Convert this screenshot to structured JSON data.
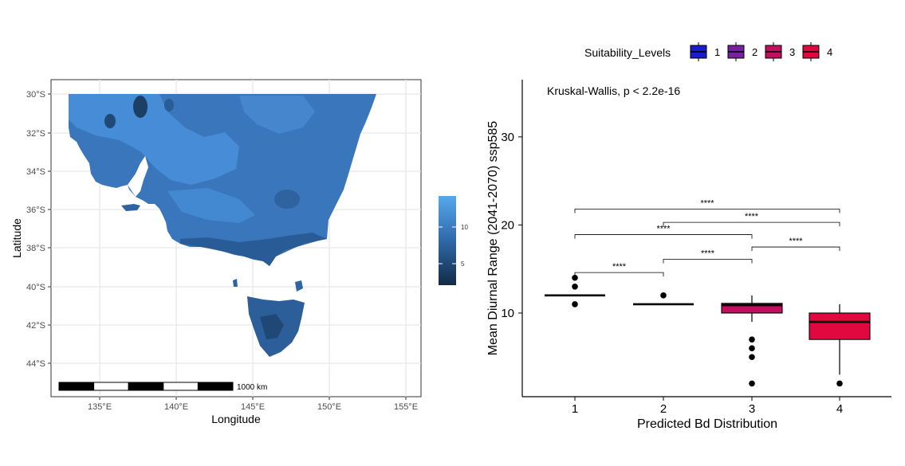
{
  "map_panel": {
    "xlabel": "Longitude",
    "ylabel": "Latitude",
    "x_ticks": [
      "135°E",
      "140°E",
      "145°E",
      "150°E",
      "155°E"
    ],
    "y_ticks": [
      "30°S",
      "32°S",
      "34°S",
      "36°S",
      "38°S",
      "40°S",
      "42°S",
      "44°S"
    ],
    "scalebar_label": "1000 km",
    "colorbar_ticks": [
      "10",
      "5"
    ],
    "colors": {
      "land_main": "#3b78bf",
      "land_light": "#4a90d9",
      "land_dark": "#1f4e80",
      "panel_border": "#333333",
      "grid": "#ebebeb"
    }
  },
  "chart_data": {
    "type": "box",
    "legend_title": "Suitability_Levels",
    "legend_position": "top",
    "annotation": "Kruskal-Wallis, p < 2.2e-16",
    "xlabel": "Predicted Bd Distribution",
    "ylabel": "Mean Diurnal Range (2041-2070) ssp585",
    "categories": [
      "1",
      "2",
      "3",
      "4"
    ],
    "y_ticks": [
      10,
      20,
      30
    ],
    "ylim": [
      0.5,
      36.5
    ],
    "series": [
      {
        "name": "1",
        "color": "#1c1ccf",
        "q1": 12,
        "median": 12,
        "q3": 12,
        "whisker_low": 12,
        "whisker_high": 12,
        "outliers": [
          11,
          13,
          14
        ]
      },
      {
        "name": "2",
        "color": "#7a1fa2",
        "q1": 11,
        "median": 11,
        "q3": 11,
        "whisker_low": 11,
        "whisker_high": 11,
        "outliers": [
          12
        ]
      },
      {
        "name": "3",
        "color": "#c2105e",
        "q1": 10,
        "median": 10.9,
        "q3": 11.1,
        "whisker_low": 9,
        "whisker_high": 12,
        "outliers": [
          2,
          5,
          6,
          7
        ]
      },
      {
        "name": "4",
        "color": "#e0083f",
        "q1": 7,
        "median": 9,
        "q3": 10,
        "whisker_low": 3,
        "whisker_high": 11,
        "outliers": [
          2
        ]
      }
    ],
    "comparisons": [
      {
        "from": "1",
        "to": "2",
        "y": 14.6,
        "label": "****"
      },
      {
        "from": "2",
        "to": "3",
        "y": 16.1,
        "label": "****"
      },
      {
        "from": "3",
        "to": "4",
        "y": 17.5,
        "label": "****"
      },
      {
        "from": "1",
        "to": "3",
        "y": 18.9,
        "label": "****"
      },
      {
        "from": "2",
        "to": "4",
        "y": 20.3,
        "label": "****"
      },
      {
        "from": "1",
        "to": "4",
        "y": 21.8,
        "label": "****"
      }
    ]
  }
}
